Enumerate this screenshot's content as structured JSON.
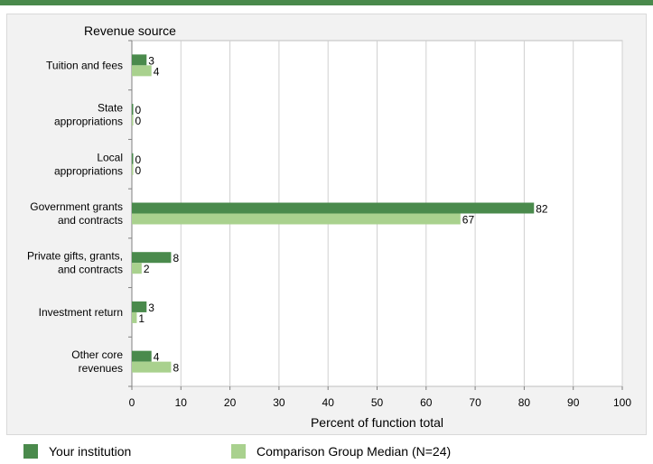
{
  "chart_data": {
    "type": "bar",
    "orientation": "horizontal",
    "title": "",
    "ylabel": "Revenue source",
    "xlabel": "Percent of function total",
    "xlim": [
      0,
      100
    ],
    "xticks": [
      0,
      10,
      20,
      30,
      40,
      50,
      60,
      70,
      80,
      90,
      100
    ],
    "grid": true,
    "legend_position": "bottom",
    "categories": [
      [
        "Tuition and fees"
      ],
      [
        "State",
        "appropriations"
      ],
      [
        "Local",
        "appropriations"
      ],
      [
        "Government grants",
        "and contracts"
      ],
      [
        "Private gifts, grants,",
        "and contracts"
      ],
      [
        "Investment return"
      ],
      [
        "Other core",
        "revenues"
      ]
    ],
    "series": [
      {
        "name": "Your institution",
        "color": "#4a8a4c",
        "values": [
          3,
          0,
          0,
          82,
          8,
          3,
          4
        ]
      },
      {
        "name": "Comparison Group Median (N=24)",
        "color": "#a9d18e",
        "values": [
          4,
          0,
          0,
          67,
          2,
          1,
          8
        ]
      }
    ]
  }
}
